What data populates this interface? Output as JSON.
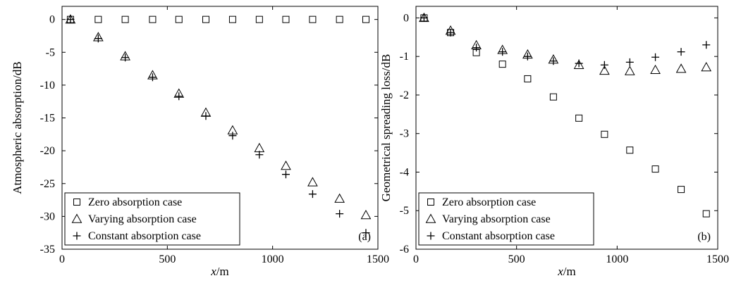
{
  "chart_data": [
    {
      "type": "scatter",
      "panel_label": "(a)",
      "xlabel": "x/m",
      "ylabel": "Atmospheric absorption/dB",
      "xlim": [
        0,
        1500
      ],
      "ylim": [
        -35,
        2
      ],
      "xticks": [
        0,
        500,
        1000,
        1500
      ],
      "yticks": [
        0,
        -5,
        -10,
        -15,
        -20,
        -25,
        -30,
        -35
      ],
      "legend_position": "bottom-left",
      "x": [
        40,
        172,
        300,
        430,
        555,
        683,
        810,
        937,
        1063,
        1190,
        1318,
        1443
      ],
      "series": [
        {
          "name": "Zero absorption case",
          "marker": "square",
          "values": [
            0,
            0,
            0,
            0,
            0,
            0,
            0,
            0,
            0,
            0,
            0,
            0
          ]
        },
        {
          "name": "Varying absorption case",
          "marker": "triangle",
          "values": [
            0,
            -2.7,
            -5.6,
            -8.5,
            -11.3,
            -14.2,
            -16.9,
            -19.6,
            -22.3,
            -24.8,
            -27.3,
            -29.8
          ]
        },
        {
          "name": "Constant absorption case",
          "marker": "plus",
          "values": [
            0,
            -2.9,
            -5.8,
            -8.8,
            -11.7,
            -14.7,
            -17.7,
            -20.6,
            -23.6,
            -26.6,
            -29.6,
            -32.5
          ]
        }
      ]
    },
    {
      "type": "scatter",
      "panel_label": "(b)",
      "xlabel": "x/m",
      "ylabel": "Geometrical spreading loss/dB",
      "xlim": [
        0,
        1500
      ],
      "ylim": [
        -6,
        0.3
      ],
      "xticks": [
        0,
        500,
        1000,
        1500
      ],
      "yticks": [
        0,
        -1,
        -2,
        -3,
        -4,
        -5,
        -6
      ],
      "legend_position": "bottom-left",
      "x": [
        40,
        172,
        300,
        430,
        555,
        683,
        810,
        937,
        1063,
        1190,
        1318,
        1443
      ],
      "series": [
        {
          "name": "Zero absorption case",
          "marker": "square",
          "values": [
            0,
            -0.38,
            -0.9,
            -1.2,
            -1.58,
            -2.05,
            -2.6,
            -3.02,
            -3.43,
            -3.92,
            -4.45,
            -5.08
          ]
        },
        {
          "name": "Varying absorption case",
          "marker": "triangle",
          "values": [
            0,
            -0.33,
            -0.71,
            -0.83,
            -0.95,
            -1.08,
            -1.22,
            -1.37,
            -1.38,
            -1.35,
            -1.32,
            -1.28
          ]
        },
        {
          "name": "Constant absorption case",
          "marker": "plus",
          "values": [
            0,
            -0.38,
            -0.77,
            -0.88,
            -1.0,
            -1.12,
            -1.18,
            -1.22,
            -1.15,
            -1.02,
            -0.88,
            -0.7
          ]
        }
      ]
    }
  ]
}
